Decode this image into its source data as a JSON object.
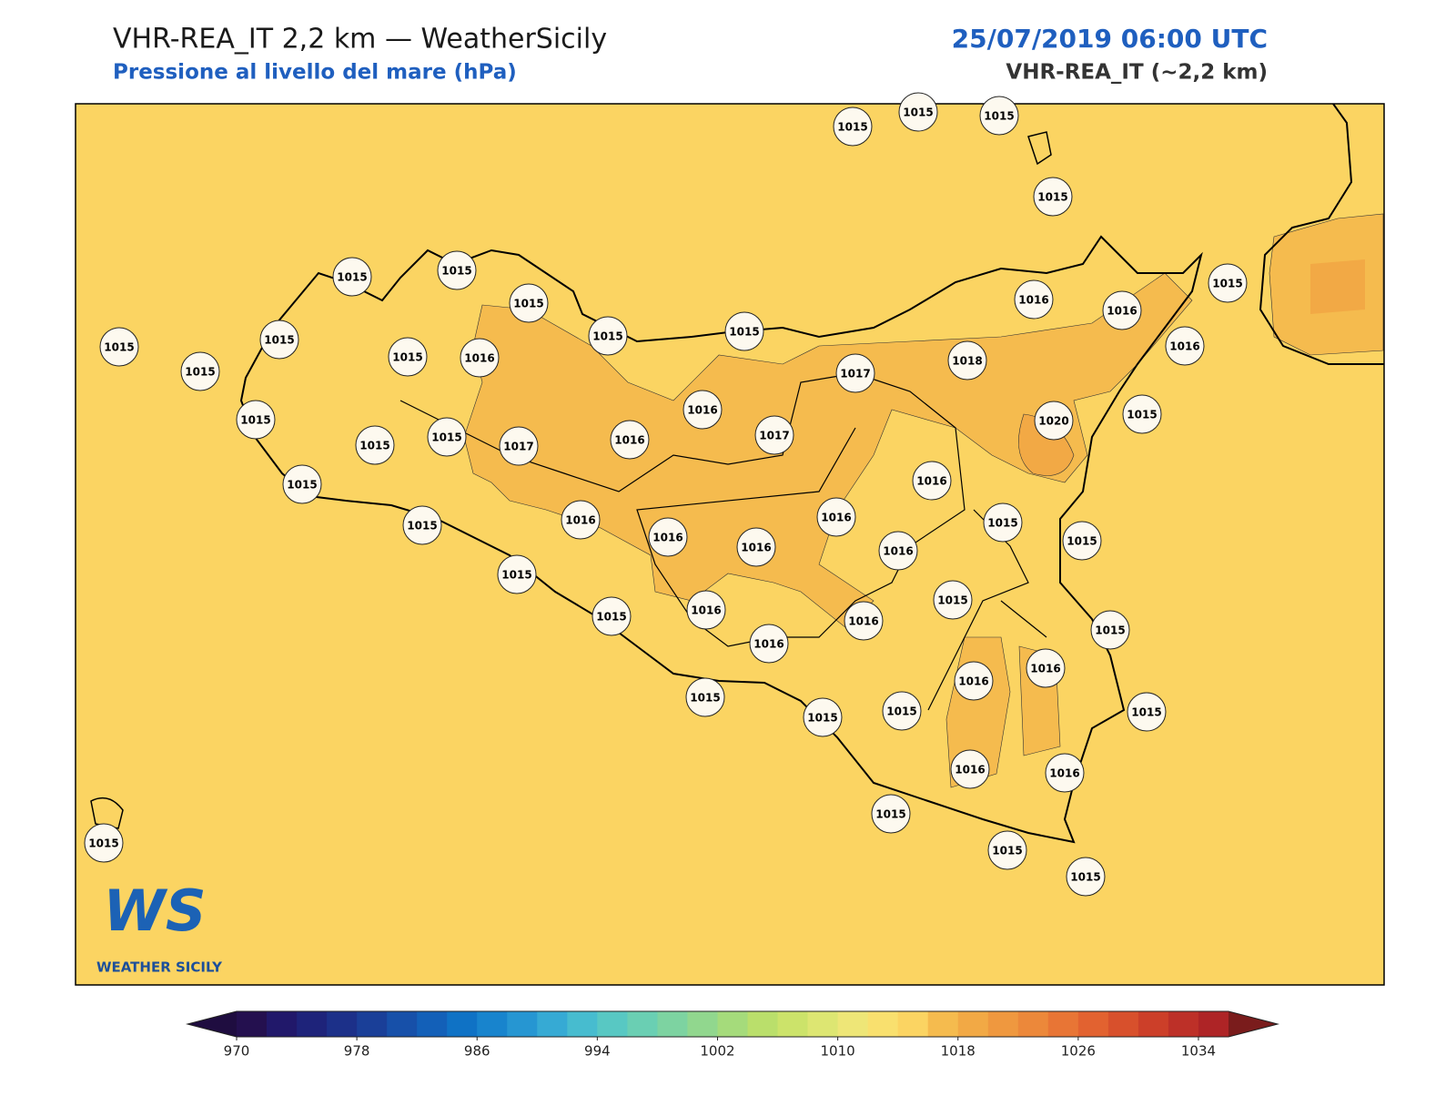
{
  "header": {
    "title": "VHR-REA_IT 2,2 km — WeatherSicily",
    "subtitle": "Pressione al livello del mare (hPa)",
    "date": "25/07/2019 06:00 UTC",
    "model": "VHR-REA_IT (~2,2 km)"
  },
  "stations": [
    1015,
    1015,
    1015,
    1015,
    1015,
    1015,
    1015,
    1015,
    1015,
    1015,
    1015,
    1016,
    1015,
    1015,
    1016,
    1016,
    1015,
    1016,
    1017,
    1018,
    1016,
    1015,
    1015,
    1015,
    1017,
    1016,
    1017,
    1020,
    1015,
    1015,
    1015,
    1016,
    1016,
    1016,
    1016,
    1016,
    1015,
    1015,
    1016,
    1015,
    1015,
    1016,
    1016,
    1016,
    1015,
    1015,
    1016,
    1016,
    1015,
    1015,
    1015,
    1015,
    1016,
    1016,
    1015,
    1015,
    1015,
    1015
  ],
  "colorbar": {
    "clim": [
      970,
      1036
    ],
    "ticks": [
      970,
      978,
      986,
      994,
      1002,
      1010,
      1018,
      1026,
      1034
    ],
    "colors": [
      "#24104f",
      "#21186a",
      "#1e237a",
      "#1c3089",
      "#1a3f98",
      "#1750a9",
      "#1360b8",
      "#0f72c5",
      "#1884cd",
      "#2696d2",
      "#36aad4",
      "#47bccf",
      "#58c8c3",
      "#6acfb3",
      "#7dd3a1",
      "#91d78e",
      "#a5db7b",
      "#badf6b",
      "#cce36a",
      "#dde672",
      "#eee677",
      "#f9e06e",
      "#fbd462",
      "#f5bb4e",
      "#f2a945",
      "#ef983f",
      "#ec883a",
      "#e87535",
      "#e26230",
      "#d8502c",
      "#cc3f29",
      "#bd3028",
      "#ae2426"
    ],
    "under_color": "#1f0d40",
    "over_color": "#7a1c1c"
  },
  "logo": {
    "mark": "WS",
    "name": "WEATHER SICILY"
  }
}
